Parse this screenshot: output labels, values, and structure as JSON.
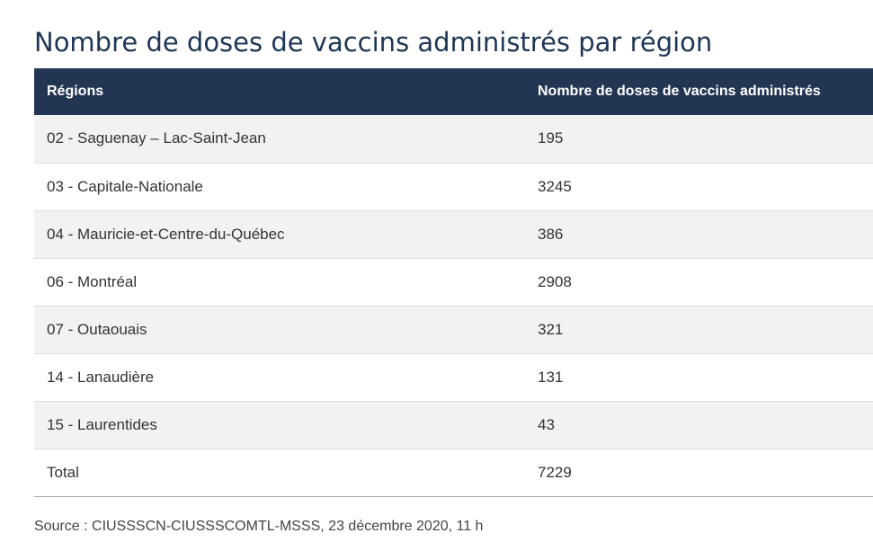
{
  "title": "Nombre de doses de vaccins administrés par région",
  "table": {
    "headers": [
      "Régions",
      "Nombre de doses de vaccins administrés"
    ],
    "rows": [
      {
        "region": "02 - Saguenay – Lac-Saint-Jean",
        "doses": "195"
      },
      {
        "region": "03 - Capitale-Nationale",
        "doses": "3245"
      },
      {
        "region": "04 - Mauricie-et-Centre-du-Québec",
        "doses": "386"
      },
      {
        "region": "06 - Montréal",
        "doses": "2908"
      },
      {
        "region": "07 - Outaouais",
        "doses": "321"
      },
      {
        "region": "14 - Lanaudière",
        "doses": "131"
      },
      {
        "region": "15 - Laurentides",
        "doses": "43"
      }
    ],
    "total": {
      "label": "Total",
      "doses": "7229"
    }
  },
  "source": "Source : CIUSSSCN-CIUSSSCOMTL-MSSS, 23 décembre 2020, 11 h",
  "colors": {
    "header_bg": "#223654",
    "title": "#1f3656",
    "stripe": "#f2f2f2"
  }
}
